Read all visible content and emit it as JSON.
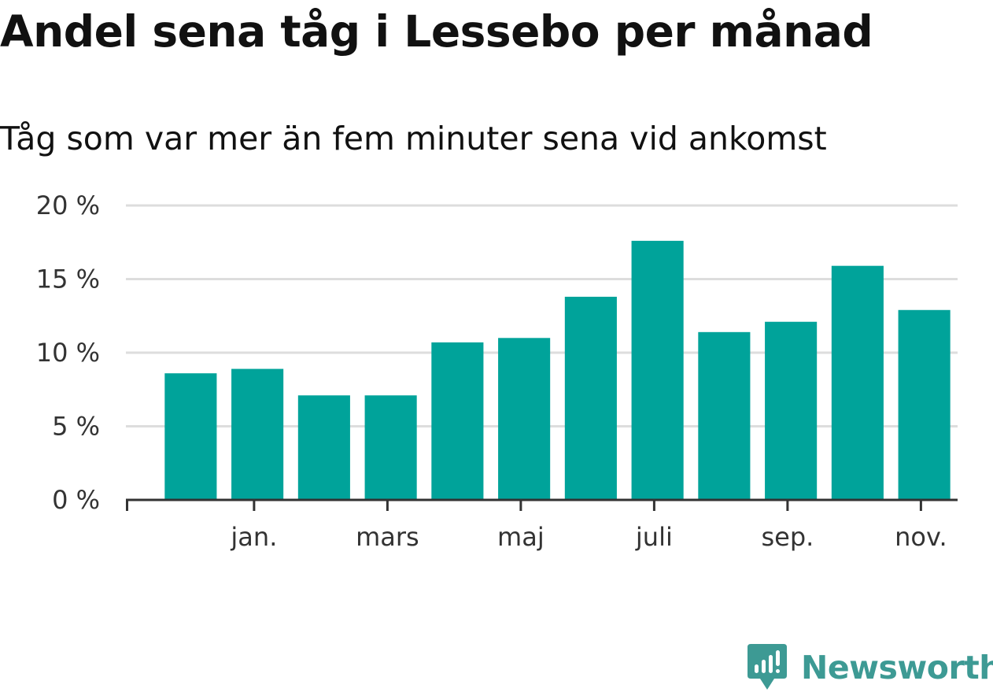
{
  "title": "Andel sena tåg i Lessebo per månad",
  "subtitle": "Tåg som var mer än fem minuter sena vid ankomst",
  "brand": {
    "name": "Newsworthy",
    "color": "#3d9a94",
    "icon": "chart-bubble-icon"
  },
  "chart_data": {
    "type": "bar",
    "color": "#00a39a",
    "values": [
      8.6,
      8.9,
      7.1,
      7.1,
      10.7,
      11.0,
      13.8,
      17.6,
      11.4,
      12.1,
      15.9,
      12.9
    ],
    "yticks": [
      0,
      5,
      10,
      15,
      20
    ],
    "ytick_labels": [
      "0 %",
      "5 %",
      "10 %",
      "15 %",
      "20 %"
    ],
    "ylim": [
      0,
      20
    ],
    "xtick_labels": [
      "jan.",
      "mars",
      "maj",
      "juli",
      "sep.",
      "nov."
    ],
    "grid": true
  }
}
